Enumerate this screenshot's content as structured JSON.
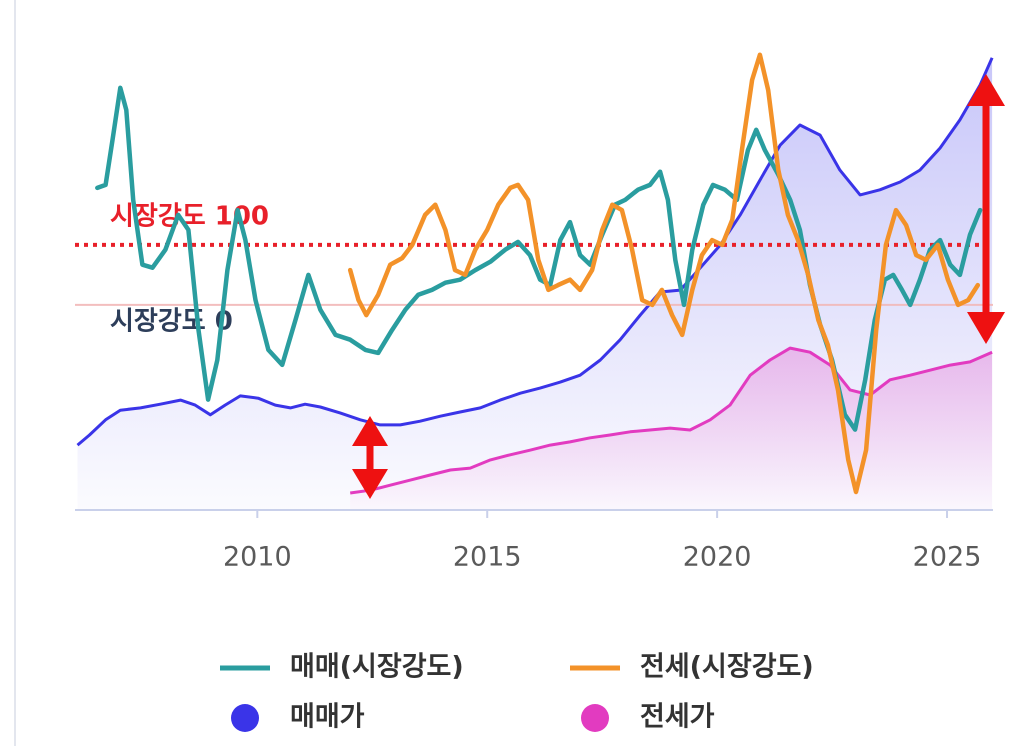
{
  "chart_data": {
    "type": "line",
    "xlim": [
      2006.1,
      2026.0
    ],
    "xticks": [
      2010,
      2015,
      2020,
      2025
    ],
    "ylim": [
      -342,
      425
    ],
    "y2lim": [
      0,
      100
    ],
    "reference_lines": [
      {
        "value": 100,
        "label": "시장강도 100",
        "color": "#e8202a",
        "style": "dotted"
      },
      {
        "value": 0,
        "label": "시장강도 0",
        "color": "#2d3e5a",
        "style": "solid"
      }
    ],
    "series": [
      {
        "name": "매매가",
        "color": "#3a34e8",
        "style": "area",
        "axis": "y2",
        "x": [
          2006.09,
          2006.35,
          2006.7,
          2007.02,
          2007.46,
          2007.89,
          2008.33,
          2008.65,
          2008.98,
          2009.3,
          2009.63,
          2010.02,
          2010.39,
          2010.72,
          2011.04,
          2011.37,
          2011.8,
          2012.24,
          2012.67,
          2013.11,
          2013.54,
          2013.98,
          2014.41,
          2014.85,
          2015.28,
          2015.72,
          2016.15,
          2016.59,
          2017.02,
          2017.46,
          2017.89,
          2018.33,
          2018.76,
          2019.2,
          2019.63,
          2020.07,
          2020.5,
          2020.93,
          2021.37,
          2021.8,
          2022.24,
          2022.67,
          2023.11,
          2023.54,
          2023.98,
          2024.41,
          2024.85,
          2025.28,
          2025.72,
          2025.98
        ],
        "values": [
          14.1,
          16.3,
          19.6,
          21.7,
          22.2,
          23.0,
          23.9,
          22.8,
          20.7,
          22.8,
          24.8,
          24.3,
          22.8,
          22.2,
          23.0,
          22.4,
          21.1,
          19.6,
          18.5,
          18.5,
          19.3,
          20.4,
          21.3,
          22.2,
          23.9,
          25.4,
          26.5,
          27.8,
          29.3,
          32.6,
          37.0,
          42.4,
          47.4,
          47.8,
          52.6,
          57.6,
          64.1,
          71.7,
          79.3,
          83.7,
          81.5,
          73.9,
          68.5,
          69.6,
          71.3,
          73.9,
          78.7,
          84.8,
          92.4,
          98.3
        ]
      },
      {
        "name": "전세가",
        "color": "#e23bc0",
        "style": "area",
        "axis": "y2",
        "x": [
          2012.02,
          2012.46,
          2012.89,
          2013.33,
          2013.76,
          2014.2,
          2014.63,
          2015.07,
          2015.5,
          2015.93,
          2016.37,
          2016.8,
          2017.24,
          2017.67,
          2018.11,
          2018.54,
          2018.98,
          2019.41,
          2019.85,
          2020.28,
          2020.72,
          2021.15,
          2021.59,
          2022.02,
          2022.46,
          2022.89,
          2023.33,
          2023.76,
          2024.2,
          2024.63,
          2025.07,
          2025.5,
          2025.98
        ],
        "values": [
          3.7,
          4.3,
          5.4,
          6.5,
          7.6,
          8.7,
          9.1,
          10.9,
          12.0,
          13.0,
          14.1,
          14.8,
          15.7,
          16.3,
          17.0,
          17.4,
          17.8,
          17.4,
          19.6,
          22.8,
          29.3,
          32.6,
          35.2,
          34.3,
          31.5,
          26.1,
          25.0,
          28.3,
          29.3,
          30.4,
          31.5,
          32.2,
          34.3
        ]
      },
      {
        "name": "매매(시장강도)",
        "color": "#2a9d9f",
        "style": "line",
        "x": [
          2006.52,
          2006.7,
          2006.85,
          2007.02,
          2007.15,
          2007.3,
          2007.5,
          2007.72,
          2008.0,
          2008.28,
          2008.5,
          2008.72,
          2008.93,
          2009.13,
          2009.35,
          2009.57,
          2009.74,
          2009.96,
          2010.24,
          2010.54,
          2010.83,
          2011.11,
          2011.37,
          2011.7,
          2012.02,
          2012.35,
          2012.63,
          2012.93,
          2013.22,
          2013.5,
          2013.8,
          2014.09,
          2014.41,
          2014.74,
          2015.07,
          2015.39,
          2015.67,
          2015.93,
          2016.15,
          2016.37,
          2016.59,
          2016.8,
          2017.02,
          2017.24,
          2017.5,
          2017.78,
          2018.0,
          2018.28,
          2018.54,
          2018.76,
          2018.93,
          2019.09,
          2019.28,
          2019.46,
          2019.7,
          2019.91,
          2020.17,
          2020.43,
          2020.67,
          2020.85,
          2021.04,
          2021.33,
          2021.59,
          2021.8,
          2022.02,
          2022.24,
          2022.5,
          2022.78,
          2023.0,
          2023.22,
          2023.43,
          2023.65,
          2023.83,
          2024.02,
          2024.2,
          2024.41,
          2024.63,
          2024.85,
          2025.07,
          2025.28,
          2025.5,
          2025.72
        ],
        "values": [
          195,
          200,
          275,
          362,
          325,
          175,
          67,
          62,
          92,
          150,
          125,
          -42,
          -158,
          -92,
          58,
          158,
          108,
          8,
          -75,
          -100,
          -25,
          50,
          -8,
          -50,
          -58,
          -75,
          -80,
          -42,
          -8,
          17,
          25,
          37,
          42,
          58,
          72,
          92,
          105,
          83,
          42,
          33,
          108,
          138,
          83,
          67,
          117,
          167,
          175,
          192,
          200,
          222,
          175,
          75,
          0,
          92,
          167,
          200,
          192,
          175,
          258,
          292,
          258,
          217,
          175,
          125,
          33,
          -33,
          -92,
          -183,
          -208,
          -125,
          -25,
          42,
          50,
          25,
          0,
          42,
          92,
          108,
          67,
          50,
          117,
          158
        ]
      },
      {
        "name": "전세(시장강도)",
        "color": "#f39229",
        "style": "line",
        "x": [
          2012.02,
          2012.2,
          2012.37,
          2012.63,
          2012.89,
          2013.15,
          2013.37,
          2013.65,
          2013.87,
          2014.09,
          2014.3,
          2014.52,
          2014.74,
          2015.0,
          2015.24,
          2015.5,
          2015.67,
          2015.89,
          2016.11,
          2016.33,
          2016.54,
          2016.8,
          2017.02,
          2017.28,
          2017.5,
          2017.72,
          2017.93,
          2018.15,
          2018.37,
          2018.59,
          2018.8,
          2019.02,
          2019.24,
          2019.46,
          2019.67,
          2019.89,
          2020.11,
          2020.33,
          2020.54,
          2020.76,
          2020.93,
          2021.11,
          2021.33,
          2021.54,
          2021.76,
          2021.98,
          2022.2,
          2022.41,
          2022.63,
          2022.85,
          2023.02,
          2023.24,
          2023.46,
          2023.67,
          2023.89,
          2024.11,
          2024.33,
          2024.54,
          2024.8,
          2025.02,
          2025.24,
          2025.46,
          2025.67
        ],
        "values": [
          58,
          8,
          -17,
          17,
          67,
          78,
          100,
          150,
          167,
          125,
          58,
          50,
          92,
          125,
          167,
          195,
          200,
          175,
          75,
          25,
          33,
          42,
          25,
          58,
          125,
          167,
          158,
          92,
          8,
          0,
          25,
          -17,
          -50,
          25,
          83,
          108,
          100,
          142,
          258,
          375,
          417,
          358,
          225,
          150,
          108,
          50,
          -25,
          -67,
          -142,
          -258,
          -312,
          -242,
          -42,
          100,
          158,
          133,
          83,
          75,
          100,
          42,
          0,
          8,
          33
        ]
      }
    ],
    "legend_order": [
      2,
      3,
      0,
      1
    ]
  }
}
